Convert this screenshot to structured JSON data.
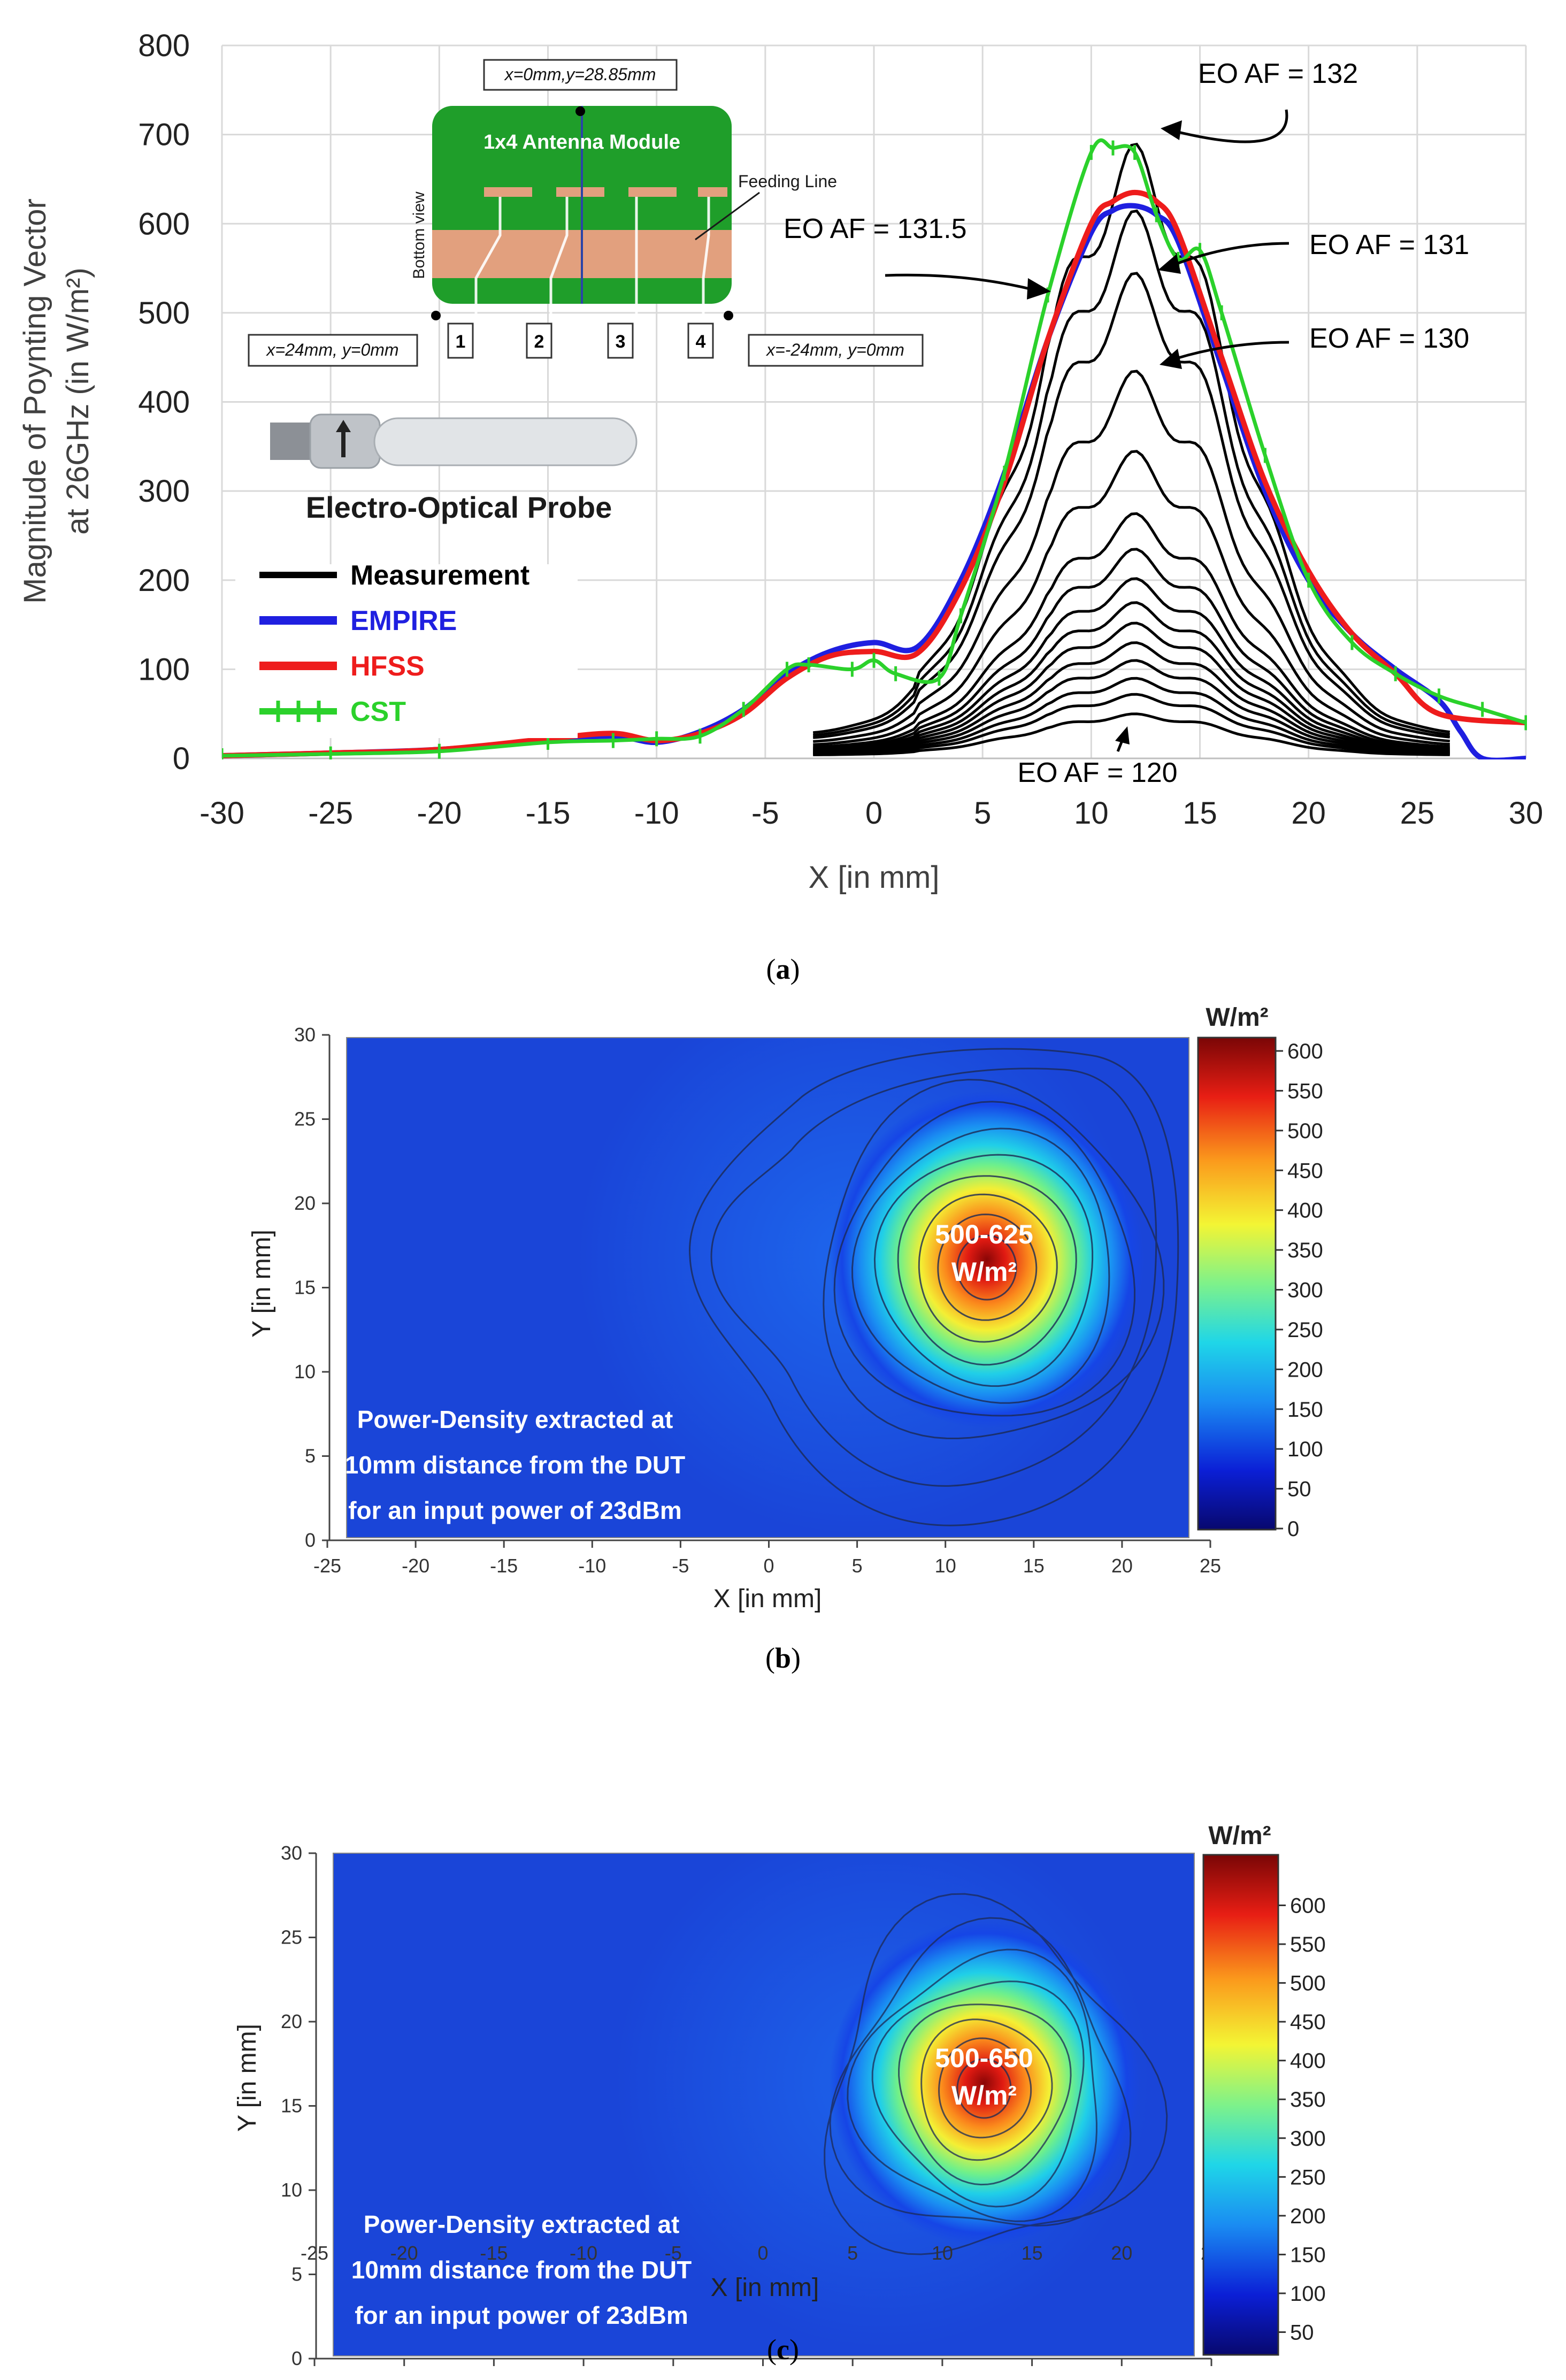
{
  "colors": {
    "measurement": "#000000",
    "empire": "#1f1fe0",
    "hfss": "#ee1c1c",
    "cst": "#2bd12b",
    "pcb_green": "#1f9e2a",
    "pcb_pad": "#e2a07e"
  },
  "chart_data": [
    {
      "id": "a",
      "type": "line",
      "ylabel_line1": "Magnitude of Poynting Vector",
      "ylabel_line2": "at 26GHz (in W/m²)",
      "xlabel": "X [in mm]",
      "xlim": [
        -30,
        30
      ],
      "ylim": [
        0,
        800
      ],
      "xticks": [
        "-30",
        "-25",
        "-20",
        "-15",
        "-10",
        "-5",
        "0",
        "5",
        "10",
        "15",
        "20",
        "25",
        "30"
      ],
      "yticks": [
        "0",
        "100",
        "200",
        "300",
        "400",
        "500",
        "600",
        "700",
        "800"
      ],
      "grid": true,
      "caption": "a",
      "legend": {
        "position": "center-left",
        "entries": [
          "Measurement",
          "EMPIRE",
          "HFSS",
          "CST"
        ]
      },
      "inset_module": {
        "title": "1x4 Antenna Module",
        "side_label": "Bottom view",
        "feeding_label": "Feeding Line",
        "top_point": "x=0mm,y=28.85mm",
        "left_point": "x=24mm, y=0mm",
        "right_point": "x=-24mm, y=0mm",
        "ports": [
          "1",
          "2",
          "3",
          "4"
        ]
      },
      "inset_probe": {
        "title": "Electro-Optical Probe"
      },
      "annotations": [
        "EO AF = 132",
        "EO AF = 131.5",
        "EO AF = 131",
        "EO AF = 130",
        "EO AF = 120"
      ],
      "measurement_peaks": [
        50,
        72,
        90,
        110,
        130,
        152,
        175,
        202,
        235,
        275,
        345,
        435,
        545,
        615,
        690
      ],
      "series": [
        {
          "name": "EMPIRE",
          "x": [
            -30,
            -25,
            -20,
            -15,
            -12,
            -10,
            -8,
            -6,
            -4,
            -2,
            0,
            2,
            4,
            6,
            8,
            10,
            11,
            12,
            13,
            14,
            16,
            18,
            20,
            22,
            24,
            26,
            27,
            28,
            30
          ],
          "y": [
            3,
            6,
            10,
            20,
            25,
            18,
            30,
            55,
            95,
            120,
            130,
            125,
            200,
            320,
            470,
            590,
            615,
            620,
            610,
            580,
            440,
            300,
            200,
            140,
            100,
            65,
            30,
            0,
            0
          ]
        },
        {
          "name": "HFSS",
          "x": [
            -30,
            -25,
            -20,
            -15,
            -12,
            -10,
            -8,
            -6,
            -4,
            -2,
            0,
            2,
            4,
            6,
            8,
            10,
            11,
            12,
            13,
            14,
            16,
            18,
            20,
            22,
            24,
            26,
            30
          ],
          "y": [
            3,
            6,
            10,
            22,
            28,
            20,
            28,
            50,
            90,
            115,
            120,
            118,
            190,
            310,
            470,
            600,
            625,
            635,
            625,
            590,
            450,
            310,
            210,
            140,
            95,
            50,
            40
          ]
        },
        {
          "name": "CST",
          "x": [
            -30,
            -25,
            -20,
            -15,
            -12,
            -10,
            -8,
            -6,
            -4,
            -3,
            -1,
            0,
            1,
            3,
            4,
            6,
            8,
            10,
            11,
            12,
            13,
            14,
            15,
            16,
            18,
            20,
            22,
            24,
            26,
            28,
            30
          ],
          "y": [
            3,
            5,
            8,
            18,
            20,
            22,
            25,
            55,
            100,
            105,
            100,
            110,
            95,
            90,
            160,
            320,
            520,
            680,
            685,
            680,
            610,
            560,
            570,
            500,
            340,
            200,
            130,
            95,
            70,
            55,
            40
          ]
        }
      ]
    },
    {
      "id": "b",
      "type": "heatmap",
      "xlabel": "X [in mm]",
      "ylabel": "Y [in mm]",
      "xticks": [
        "-25",
        "-20",
        "-15",
        "-10",
        "-5",
        "0",
        "5",
        "10",
        "15",
        "20",
        "25"
      ],
      "yticks": [
        "0",
        "5",
        "10",
        "15",
        "20",
        "25",
        "30"
      ],
      "xlim": [
        -25,
        25
      ],
      "ylim": [
        0,
        30
      ],
      "peak_center": [
        12.5,
        16.5
      ],
      "peak_value": 625,
      "colorbar_title": "W/m²",
      "colorbar_ticks": [
        "0",
        "50",
        "100",
        "150",
        "200",
        "250",
        "300",
        "350",
        "400",
        "450",
        "500",
        "550",
        "600"
      ],
      "peak_label_line1": "500-625",
      "peak_label_line2": "W/m²",
      "note_lines": [
        "Power-Density extracted at",
        "10mm distance from the DUT",
        "for an input power of 23dBm"
      ],
      "caption": "b"
    },
    {
      "id": "c",
      "type": "heatmap",
      "xlabel": "X [in mm]",
      "ylabel": "Y [in mm]",
      "xticks": [
        "-25",
        "-20",
        "-15",
        "-10",
        "-5",
        "0",
        "5",
        "10",
        "15",
        "20",
        "25"
      ],
      "yticks": [
        "0",
        "5",
        "10",
        "15",
        "20",
        "25",
        "30"
      ],
      "xlim": [
        -25,
        25
      ],
      "ylim": [
        0,
        30
      ],
      "peak_center": [
        12.5,
        16.5
      ],
      "peak_value": 650,
      "colorbar_title": "W/m²",
      "colorbar_ticks": [
        "50",
        "100",
        "150",
        "200",
        "250",
        "300",
        "350",
        "400",
        "450",
        "500",
        "550",
        "600"
      ],
      "peak_label_line1": "500-650",
      "peak_label_line2": "W/m²",
      "note_lines": [
        "Power-Density extracted at",
        "10mm distance from the DUT",
        "for an input power of 23dBm"
      ],
      "caption": "c"
    }
  ]
}
